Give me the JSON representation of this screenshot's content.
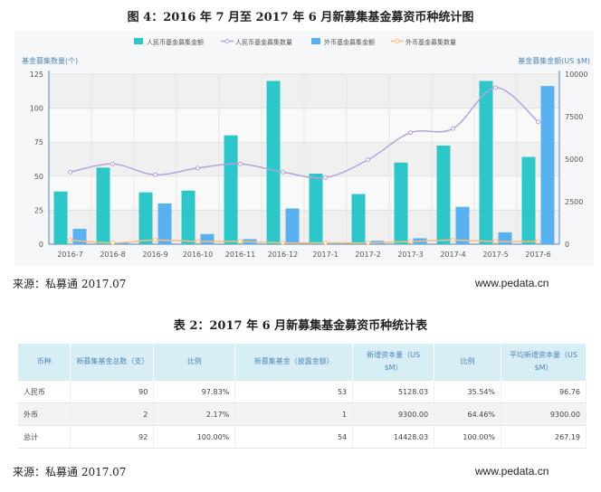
{
  "figure_title": "图 4：2016 年 7 月至 2017 年 6 月新募集基金募资币种统计图",
  "source_1": "来源：私募通  2017.07",
  "url_1": "www.pedata.cn",
  "table_title": "表 2：2017 年 6 月新募集基金募资币种统计表",
  "source_2": "来源：私募通  2017.07",
  "url_2": "www.pedata.cn",
  "colors": {
    "rmb_amount": "#2ec7c9",
    "rmb_count": "#b6a2de",
    "fx_amount": "#5ab1ef",
    "fx_count": "#ffb980"
  },
  "chart_data": {
    "type": "bar",
    "categories": [
      "2016-7",
      "2016-8",
      "2016-9",
      "2016-10",
      "2016-11",
      "2016-12",
      "2017-1",
      "2017-2",
      "2017-3",
      "2017-4",
      "2017-5",
      "2017-6"
    ],
    "left_axis": {
      "label": "基金募集数量(个)",
      "ylim": [
        0,
        125
      ],
      "ticks": [
        0,
        25,
        50,
        75,
        100,
        125
      ]
    },
    "right_axis": {
      "label": "基金募集金额(US $M)",
      "ylim": [
        0,
        10000
      ],
      "ticks": [
        0,
        2500,
        5000,
        7500,
        10000
      ]
    },
    "legend_position": "top-center",
    "grid": true,
    "series": [
      {
        "name": "人民币基金募集金额",
        "kind": "bar",
        "axis": "right",
        "color": "#2ec7c9",
        "values": [
          3100,
          4500,
          3050,
          3150,
          6400,
          9600,
          4150,
          2950,
          4800,
          5800,
          9600,
          5130
        ]
      },
      {
        "name": "人民币基金募集数量",
        "kind": "line",
        "axis": "left",
        "color": "#b6a2de",
        "values": [
          53,
          59,
          51,
          56,
          59,
          53,
          49,
          62,
          82,
          85,
          115,
          90
        ]
      },
      {
        "name": "外币基金募集金额",
        "kind": "bar",
        "axis": "right",
        "color": "#5ab1ef",
        "values": [
          900,
          100,
          2400,
          600,
          300,
          2100,
          100,
          200,
          350,
          2200,
          700,
          9300
        ]
      },
      {
        "name": "外币基金募集数量",
        "kind": "line",
        "axis": "left",
        "color": "#ffb980",
        "values": [
          3,
          1,
          3,
          2,
          2,
          1,
          1,
          1,
          2,
          3,
          2,
          2
        ]
      }
    ]
  },
  "table": {
    "headers": [
      "币种",
      "新募集基金总数（支）",
      "比例",
      "新募集基金（披露金额）",
      "新增资本量（US $M）",
      "比例",
      "平均新增资本量（US $M）"
    ],
    "rows": [
      [
        "人民币",
        "90",
        "97.83%",
        "53",
        "5128.03",
        "35.54%",
        "96.76"
      ],
      [
        "外币",
        "2",
        "2.17%",
        "1",
        "9300.00",
        "64.46%",
        "9300.00"
      ],
      [
        "总计",
        "92",
        "100.00%",
        "54",
        "14428.03",
        "100.00%",
        "267.19"
      ]
    ]
  }
}
